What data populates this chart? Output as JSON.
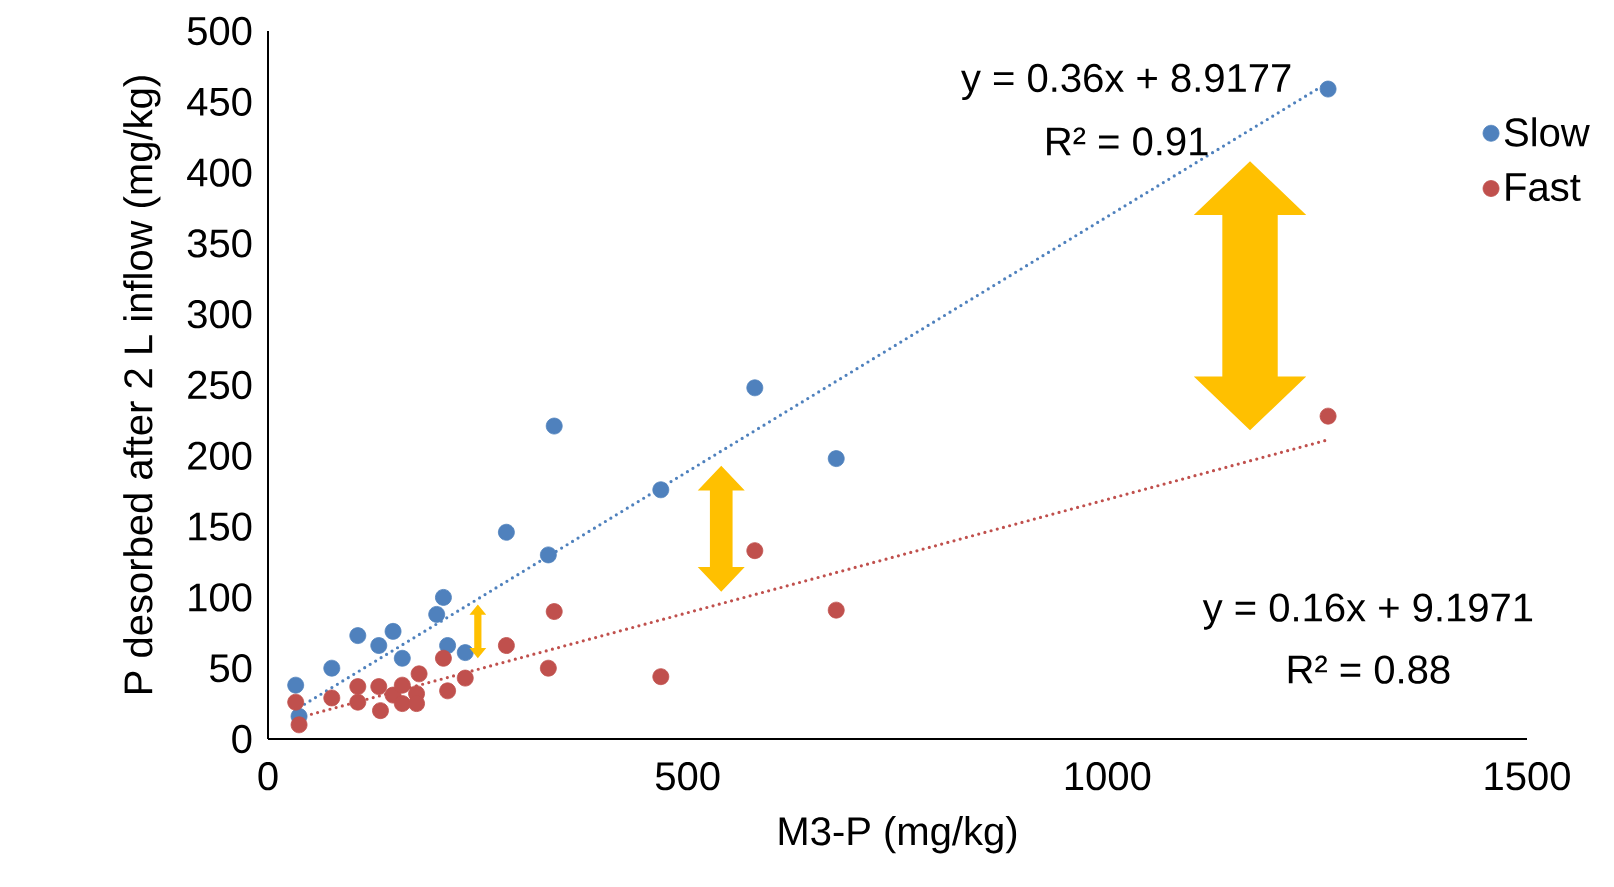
{
  "chart_data": {
    "type": "scatter",
    "xlabel": "M3-P (mg/kg)",
    "ylabel": "P desorbed after 2 L inflow (mg/kg)",
    "xlim": [
      0,
      1500
    ],
    "xticks": [
      0,
      500,
      1000,
      1500
    ],
    "ylim": [
      0,
      500
    ],
    "yticks": [
      0,
      50,
      100,
      150,
      200,
      250,
      300,
      350,
      400,
      450,
      500
    ],
    "grid": false,
    "legend": "top right",
    "marker": "circle",
    "series": [
      {
        "name": "Slow",
        "color": "#4f81bd",
        "x": [
          33,
          37,
          76,
          107,
          132,
          149,
          160,
          201,
          209,
          214,
          235,
          284,
          334,
          341,
          468,
          580,
          677,
          1263
        ],
        "values": [
          38,
          16,
          50,
          73,
          66,
          76,
          57,
          88,
          100,
          66,
          61,
          146,
          130,
          221,
          176,
          248,
          198,
          459
        ]
      },
      {
        "name": "Fast",
        "color": "#c0504d",
        "x": [
          33,
          37,
          76,
          107,
          107,
          132,
          134,
          149,
          160,
          160,
          177,
          177,
          180,
          209,
          214,
          235,
          284,
          334,
          341,
          468,
          580,
          677,
          1263
        ],
        "values": [
          26,
          10,
          29,
          37,
          26,
          37,
          20,
          31,
          38,
          25,
          32,
          25,
          46,
          57,
          34,
          43,
          66,
          50,
          90,
          44,
          133,
          91,
          228
        ]
      },
      {
        "type": "line",
        "line_style": "dotted",
        "marker": "none",
        "color": "#4f81bd",
        "x": [
          37,
          1263
        ],
        "values": [
          22.2,
          463.6
        ]
      },
      {
        "type": "line",
        "line_style": "dotted",
        "marker": "none",
        "color": "#c0504d",
        "x": [
          37,
          1263
        ],
        "values": [
          15.1,
          211.3
        ]
      }
    ],
    "annotations": [
      "y = 0.36x + 8.9177",
      "R² = 0.91",
      "y = 0.16x + 9.1971",
      "R² = 0.88"
    ]
  }
}
